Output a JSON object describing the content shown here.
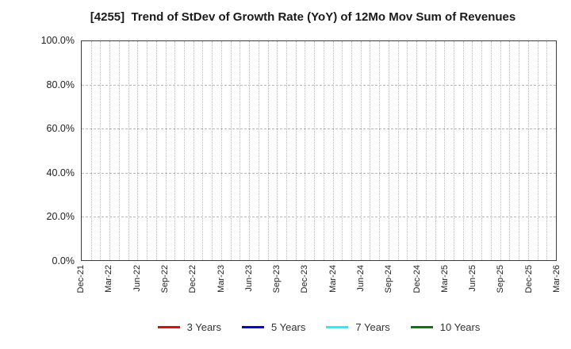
{
  "chart_data": {
    "type": "line",
    "title": "[4255]  Trend of StDev of Growth Rate (YoY) of 12Mo Mov Sum of Revenues",
    "x_tick_labels": [
      "Dec-21",
      "Mar-22",
      "Jun-22",
      "Sep-22",
      "Dec-22",
      "Mar-23",
      "Jun-23",
      "Sep-23",
      "Dec-23",
      "Mar-24",
      "Jun-24",
      "Sep-24",
      "Dec-24",
      "Mar-25",
      "Jun-25",
      "Sep-25",
      "Dec-25",
      "Mar-26"
    ],
    "x_minor_intervals_per_tick": 3,
    "y_tick_labels": [
      "0.0%",
      "20.0%",
      "40.0%",
      "60.0%",
      "80.0%",
      "100.0%"
    ],
    "ylim": [
      0,
      100
    ],
    "y_tick_step": 20,
    "grid": true,
    "legend_position": "bottom",
    "series": [
      {
        "name": "3 Years",
        "color": "#ff0000",
        "values": []
      },
      {
        "name": "5 Years",
        "color": "#0000ff",
        "values": []
      },
      {
        "name": "7 Years",
        "color": "#00ffff",
        "values": []
      },
      {
        "name": "10 Years",
        "color": "#008000",
        "values": []
      }
    ],
    "note": "Plot area contains no visible data lines"
  }
}
